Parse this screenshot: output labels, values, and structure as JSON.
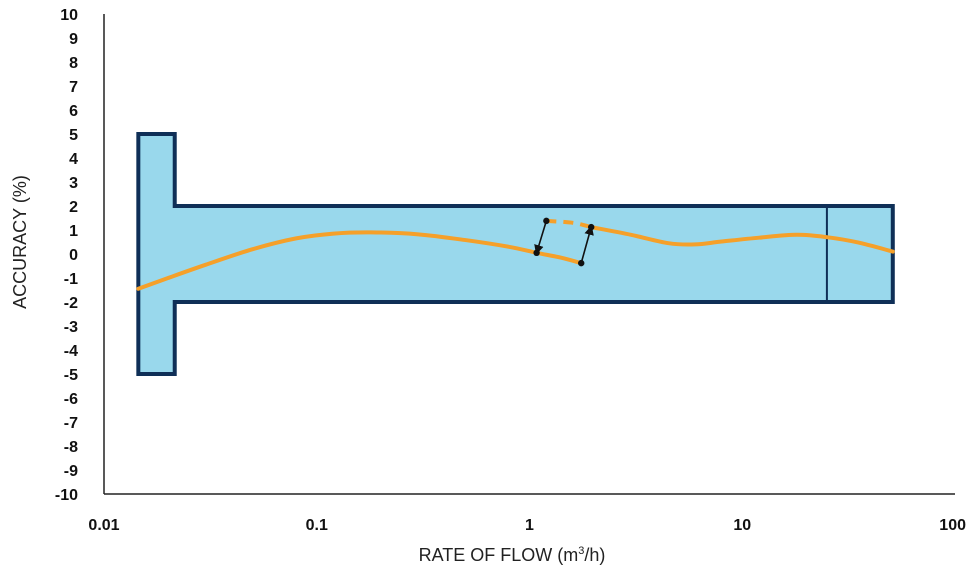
{
  "chart_data": {
    "type": "line",
    "xlabel": "RATE OF FLOW (m",
    "xlabel_sup": "3",
    "xlabel_tail": "/h)",
    "ylabel": "ACCURACY (%)",
    "x_scale": "log",
    "xlim": [
      0.01,
      100
    ],
    "ylim": [
      -10,
      10
    ],
    "x_ticks": [
      {
        "value": 0.01,
        "label": "0.01"
      },
      {
        "value": 0.1,
        "label": "0.1"
      },
      {
        "value": 1,
        "label": "1"
      },
      {
        "value": 10,
        "label": "10"
      },
      {
        "value": 100,
        "label": "100"
      }
    ],
    "y_ticks": [
      {
        "value": 10,
        "label": "10"
      },
      {
        "value": 9,
        "label": "9"
      },
      {
        "value": 8,
        "label": "8"
      },
      {
        "value": 7,
        "label": "7"
      },
      {
        "value": 6,
        "label": "6"
      },
      {
        "value": 5,
        "label": "5"
      },
      {
        "value": 4,
        "label": "4"
      },
      {
        "value": 3,
        "label": "3"
      },
      {
        "value": 2,
        "label": "2"
      },
      {
        "value": 1,
        "label": "1"
      },
      {
        "value": 0,
        "label": "0"
      },
      {
        "value": -1,
        "label": "-1"
      },
      {
        "value": -2,
        "label": "-2"
      },
      {
        "value": -3,
        "label": "-3"
      },
      {
        "value": -4,
        "label": "-4"
      },
      {
        "value": -5,
        "label": "-5"
      },
      {
        "value": -6,
        "label": "-6"
      },
      {
        "value": -7,
        "label": "-7"
      },
      {
        "value": -8,
        "label": "-8"
      },
      {
        "value": -9,
        "label": "-9"
      },
      {
        "value": -10,
        "label": "-10"
      }
    ],
    "grid": false,
    "tolerance_envelope": {
      "color_fill": "#99d8ec",
      "color_stroke": "#0f2f57",
      "low_flow_zone": {
        "x": [
          0.0145,
          0.0215
        ],
        "y": [
          -5,
          5
        ]
      },
      "main_zone": {
        "x": [
          0.0215,
          51
        ],
        "y": [
          -2,
          2
        ]
      },
      "divider_x": 25
    },
    "series": [
      {
        "color": "#f5a02a",
        "segments": [
          {
            "style": "solid",
            "points": [
              [
                0.0145,
                -1.45
              ],
              [
                0.02,
                -1.0
              ],
              [
                0.03,
                -0.45
              ],
              [
                0.05,
                0.2
              ],
              [
                0.08,
                0.65
              ],
              [
                0.12,
                0.85
              ],
              [
                0.18,
                0.9
              ],
              [
                0.3,
                0.82
              ],
              [
                0.5,
                0.58
              ],
              [
                0.8,
                0.3
              ],
              [
                1.08,
                0.05
              ],
              [
                1.4,
                -0.15
              ],
              [
                1.75,
                -0.38
              ]
            ]
          },
          {
            "style": "dashed",
            "points": [
              [
                1.2,
                1.38
              ],
              [
                1.6,
                1.3
              ],
              [
                1.95,
                1.12
              ]
            ]
          },
          {
            "style": "solid",
            "points": [
              [
                1.95,
                1.12
              ],
              [
                3,
                0.8
              ],
              [
                4.5,
                0.45
              ],
              [
                6,
                0.4
              ],
              [
                8,
                0.52
              ],
              [
                12,
                0.68
              ],
              [
                18,
                0.8
              ],
              [
                25,
                0.7
              ],
              [
                35,
                0.48
              ],
              [
                51,
                0.1
              ]
            ]
          }
        ]
      }
    ],
    "markers": [
      {
        "from": [
          1.2,
          1.38
        ],
        "to": [
          1.08,
          0.05
        ]
      },
      {
        "from": [
          1.75,
          -0.38
        ],
        "to": [
          1.95,
          1.12
        ]
      }
    ]
  }
}
